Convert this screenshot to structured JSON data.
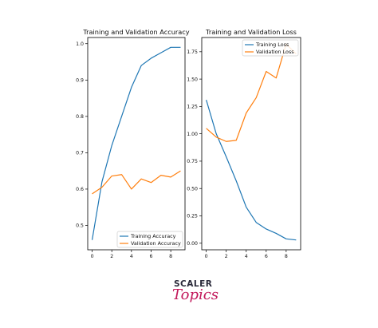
{
  "chart_data": [
    {
      "type": "line",
      "title": "Training and Validation Accuracy",
      "xlabel": "",
      "ylabel": "",
      "x": [
        0,
        1,
        2,
        3,
        4,
        5,
        6,
        7,
        8,
        9
      ],
      "series": [
        {
          "name": "Training Accuracy",
          "color": "#1f77b4",
          "values": [
            0.46,
            0.62,
            0.72,
            0.8,
            0.88,
            0.94,
            0.96,
            0.975,
            0.99,
            0.99
          ]
        },
        {
          "name": "Validation Accuracy",
          "color": "#ff7f0e",
          "values": [
            0.587,
            0.605,
            0.636,
            0.64,
            0.6,
            0.628,
            0.618,
            0.638,
            0.633,
            0.65
          ]
        }
      ],
      "xlim": [
        -0.45,
        9.45
      ],
      "ylim": [
        0.433,
        1.017
      ],
      "xticks": [
        0,
        2,
        4,
        6,
        8
      ],
      "yticks": [
        0.5,
        0.6,
        0.7,
        0.8,
        0.9,
        1.0
      ],
      "ytick_labels": [
        "0.5",
        "0.6",
        "0.7",
        "0.8",
        "0.9",
        "1.0"
      ],
      "legend": "lower-right",
      "grid": false
    },
    {
      "type": "line",
      "title": "Training and Validation Loss",
      "xlabel": "",
      "ylabel": "",
      "x": [
        0,
        1,
        2,
        3,
        4,
        5,
        6,
        7,
        8,
        9
      ],
      "series": [
        {
          "name": "Training Loss",
          "color": "#1f77b4",
          "values": [
            1.31,
            1.0,
            0.79,
            0.57,
            0.33,
            0.19,
            0.13,
            0.09,
            0.04,
            0.03
          ]
        },
        {
          "name": "Validation Loss",
          "color": "#ff7f0e",
          "values": [
            1.05,
            0.97,
            0.93,
            0.94,
            1.19,
            1.33,
            1.57,
            1.51,
            1.82,
            1.73
          ]
        }
      ],
      "xlim": [
        -0.45,
        9.45
      ],
      "ylim": [
        -0.06,
        1.88
      ],
      "xticks": [
        0,
        2,
        4,
        6,
        8
      ],
      "yticks": [
        0.0,
        0.25,
        0.5,
        0.75,
        1.0,
        1.25,
        1.5,
        1.75
      ],
      "ytick_labels": [
        "0.00",
        "0.25",
        "0.50",
        "0.75",
        "1.00",
        "1.25",
        "1.50",
        "1.75"
      ],
      "legend": "upper-right",
      "grid": false
    }
  ],
  "logo": {
    "top": "SCALER",
    "bottom": "Topics"
  }
}
